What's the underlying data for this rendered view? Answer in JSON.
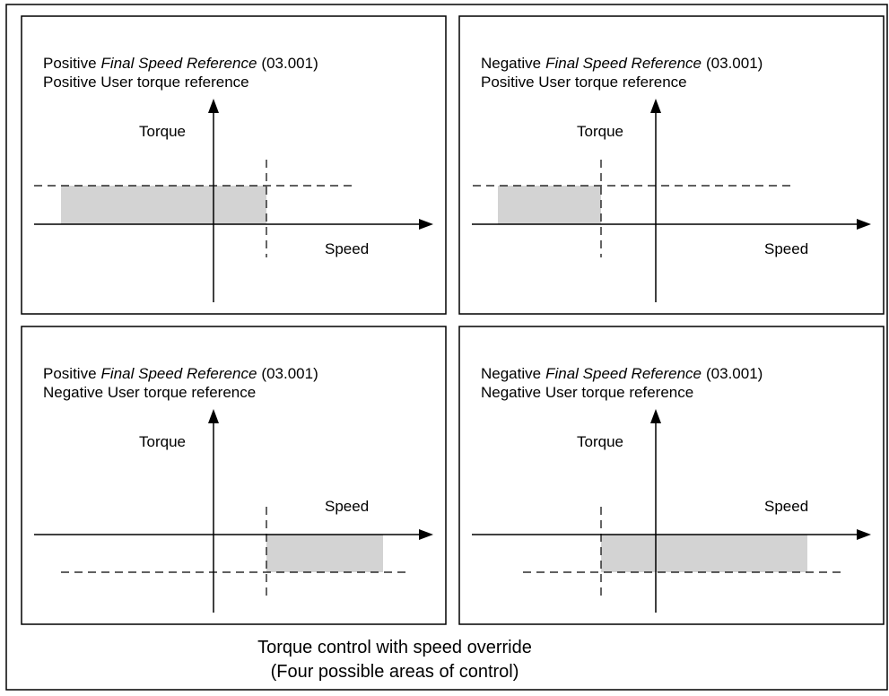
{
  "panels": [
    {
      "line1": {
        "prefix": "Positive",
        "emphasis": "Final Speed Reference",
        "suffix": "(03.001)"
      },
      "line2": "Positive User torque reference",
      "y_label": "Torque",
      "x_label": "Speed"
    },
    {
      "line1": {
        "prefix": "Negative",
        "emphasis": "Final Speed Reference",
        "suffix": "(03.001)"
      },
      "line2": "Positive User torque reference",
      "y_label": "Torque",
      "x_label": "Speed"
    },
    {
      "line1": {
        "prefix": "Positive",
        "emphasis": "Final Speed Reference",
        "suffix": "(03.001)"
      },
      "line2": "Negative User torque reference",
      "y_label": "Torque",
      "x_label": "Speed"
    },
    {
      "line1": {
        "prefix": "Negative",
        "emphasis": "Final Speed Reference",
        "suffix": "(03.001)"
      },
      "line2": "Negative User torque reference",
      "y_label": "Torque",
      "x_label": "Speed"
    }
  ],
  "caption": {
    "line1": "Torque control with speed override",
    "line2": "(Four possible areas of control)"
  }
}
